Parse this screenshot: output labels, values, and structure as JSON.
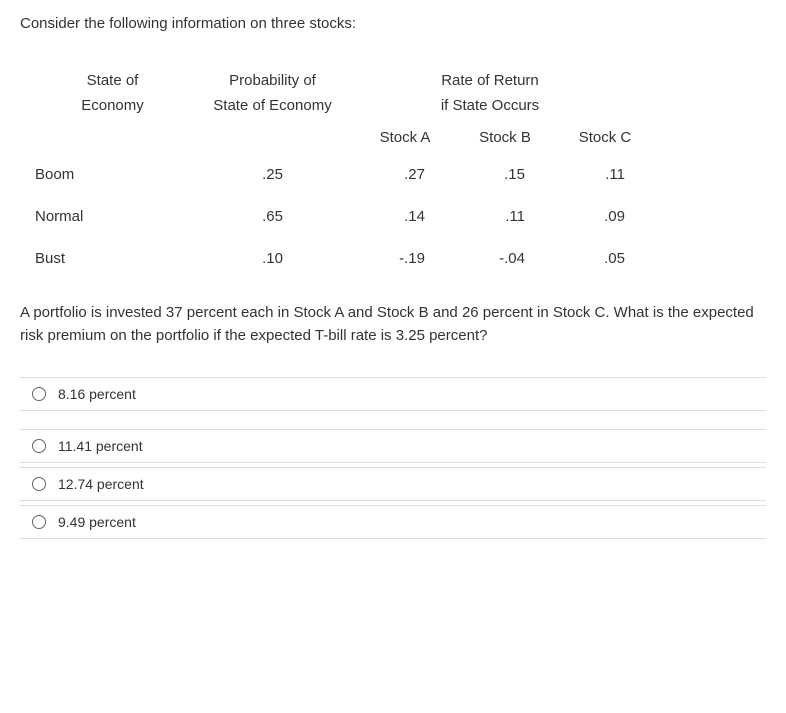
{
  "intro": "Consider the following information on three stocks:",
  "headers": {
    "col1_line1": "State of",
    "col1_line2": "Economy",
    "col2_line1": "Probability of",
    "col2_line2": "State of Economy",
    "col3_line1": "Rate of Return",
    "col3_line2": "if State Occurs"
  },
  "stocks": {
    "a": "Stock A",
    "b": "Stock B",
    "c": "Stock C"
  },
  "rows": [
    {
      "state": "Boom",
      "prob": ".25",
      "a": ".27",
      "b": ".15",
      "c": ".11"
    },
    {
      "state": "Normal",
      "prob": ".65",
      "a": ".14",
      "b": ".11",
      "c": ".09"
    },
    {
      "state": "Bust",
      "prob": ".10",
      "a": "-.19",
      "b": "-.04",
      "c": ".05"
    }
  ],
  "question": "A portfolio is invested 37 percent each in Stock A and Stock B and 26 percent in Stock C. What is the expected risk premium on the portfolio if the expected T-bill rate is 3.25 percent?",
  "options": [
    "8.16 percent",
    "11.41 percent",
    "12.74 percent",
    "9.49 percent"
  ]
}
